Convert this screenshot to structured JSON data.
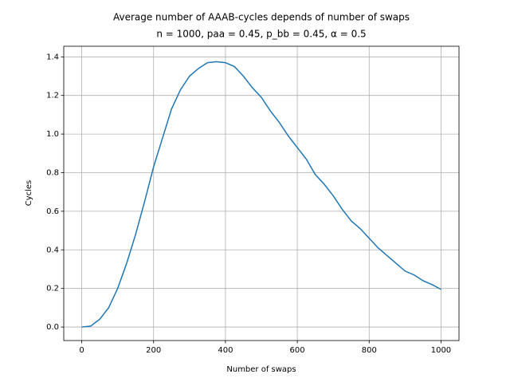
{
  "chart_data": {
    "type": "line",
    "title": "Average number of AAAB-cycles depends of number of swaps",
    "subtitle": "n = 1000, paa = 0.45, p_bb = 0.45, α = 0.5",
    "x_label": "Number of swaps",
    "y_label": "Cycles",
    "x": [
      0,
      25,
      50,
      75,
      100,
      125,
      150,
      175,
      200,
      225,
      250,
      275,
      300,
      325,
      350,
      375,
      400,
      425,
      450,
      475,
      500,
      525,
      550,
      575,
      600,
      625,
      650,
      675,
      700,
      725,
      750,
      775,
      800,
      825,
      850,
      875,
      900,
      925,
      950,
      975,
      1000
    ],
    "series": [
      {
        "name": "Cycles",
        "color": "#1f77b4",
        "values": [
          0,
          0.005,
          0.04,
          0.1,
          0.2,
          0.33,
          0.48,
          0.65,
          0.83,
          0.98,
          1.13,
          1.23,
          1.3,
          1.34,
          1.37,
          1.375,
          1.37,
          1.35,
          1.3,
          1.24,
          1.19,
          1.12,
          1.06,
          0.99,
          0.93,
          0.87,
          0.79,
          0.74,
          0.68,
          0.61,
          0.55,
          0.51,
          0.46,
          0.41,
          0.37,
          0.33,
          0.29,
          0.27,
          0.24,
          0.22,
          0.195
        ]
      }
    ],
    "xlim": [
      -50,
      1050
    ],
    "ylim": [
      -0.07,
      1.455
    ],
    "xticks": [
      0,
      200,
      400,
      600,
      800,
      1000
    ],
    "yticks": [
      {
        "value": 0,
        "label": "0.0"
      },
      0.2,
      0.4,
      0.6,
      0.8,
      {
        "value": 1,
        "label": "1.0"
      },
      1.2,
      1.4
    ],
    "grid": true
  }
}
